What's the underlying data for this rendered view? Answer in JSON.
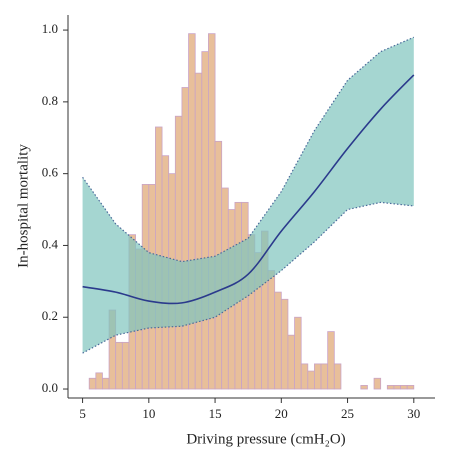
{
  "chart_data": {
    "type": "line",
    "xlabel": "Driving pressure (cmH₂O)",
    "ylabel": "In-hospital mortality",
    "xlim": [
      3.9,
      31.6
    ],
    "ylim": [
      -0.025,
      1.042
    ],
    "xticks": [
      5,
      10,
      15,
      20,
      25,
      30
    ],
    "yticks": [
      {
        "value": 0,
        "label": "0.0"
      },
      {
        "value": 0.2,
        "label": "0.2"
      },
      {
        "value": 0.4,
        "label": "0.4"
      },
      {
        "value": 0.6,
        "label": "0.6"
      },
      {
        "value": 0.8,
        "label": "0.8"
      },
      {
        "value": 1,
        "label": "1.0"
      }
    ],
    "x": [
      5,
      7.5,
      10,
      12.5,
      15,
      17.5,
      20,
      22.5,
      25,
      27.5,
      30
    ],
    "series": [
      {
        "color": "#2b3a8c",
        "values": [
          0.285,
          0.27,
          0.245,
          0.24,
          0.27,
          0.32,
          0.44,
          0.55,
          0.67,
          0.78,
          0.875
        ],
        "lower": [
          0.1,
          0.15,
          0.17,
          0.175,
          0.2,
          0.26,
          0.33,
          0.41,
          0.5,
          0.52,
          0.51
        ],
        "upper": [
          0.59,
          0.46,
          0.38,
          0.355,
          0.37,
          0.42,
          0.55,
          0.72,
          0.86,
          0.94,
          0.98
        ],
        "band_color": "#7fc4bd"
      }
    ],
    "histogram": {
      "color": "#e8bf9a",
      "edge_color": "#c9a3c6",
      "bins": [
        5.5,
        6,
        6.5,
        7,
        7.5,
        8,
        8.5,
        9,
        9.5,
        10,
        10.5,
        11,
        11.5,
        12,
        12.5,
        13,
        13.5,
        14,
        14.5,
        15,
        15.5,
        16,
        16.5,
        17,
        17.5,
        18,
        18.5,
        19,
        19.5,
        20,
        20.5,
        21,
        21.5,
        22,
        22.5,
        23,
        23.5,
        24,
        24.5,
        25,
        25.5,
        26,
        26.5,
        27,
        27.5,
        28,
        28.5,
        29,
        29.5,
        30
      ],
      "counts": [
        0.03,
        0.045,
        0.03,
        0.22,
        0.13,
        0.13,
        0.43,
        0.39,
        0.57,
        0.57,
        0.73,
        0.65,
        0.6,
        0.76,
        0.84,
        0.99,
        0.88,
        0.94,
        0.99,
        0.69,
        0.56,
        0.5,
        0.52,
        0.52,
        0.43,
        0.38,
        0.44,
        0.33,
        0.27,
        0.25,
        0.15,
        0.2,
        0.07,
        0.05,
        0.07,
        0.07,
        0.16,
        0.07,
        0,
        0,
        0,
        0.01,
        0,
        0.03,
        0,
        0.01,
        0.01,
        0.01,
        0.01
      ]
    }
  }
}
